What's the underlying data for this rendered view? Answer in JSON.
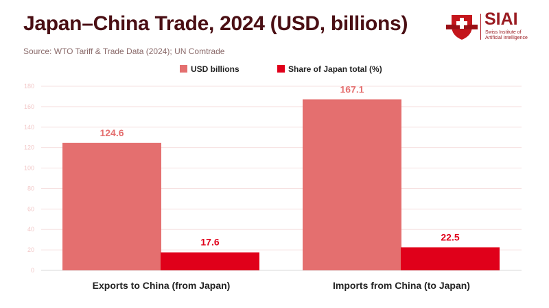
{
  "header": {
    "title": "Japan–China Trade, 2024 (USD, billions)",
    "source": "Source: WTO Tariff & Trade Data (2024); UN Comtrade"
  },
  "logo": {
    "name": "SIAI",
    "subtitle_line1": "Swiss Institute of",
    "subtitle_line2": "Artificial Intelligence"
  },
  "chart_data": {
    "type": "bar",
    "title": "Japan–China Trade, 2024 (USD, billions)",
    "categories": [
      "Exports to China (from Japan)",
      "Imports from China (to Japan)"
    ],
    "series": [
      {
        "name": "USD billions",
        "values": [
          124.6,
          167.1
        ],
        "color": "#e46f6f",
        "label_color": "#e46f6f"
      },
      {
        "name": "Share of Japan total (%)",
        "values": [
          17.6,
          22.5
        ],
        "color": "#e0001a",
        "label_color": "#e0001a"
      }
    ],
    "ylim": [
      0,
      180
    ],
    "yticks": [
      0,
      20,
      40,
      60,
      80,
      100,
      120,
      140,
      160,
      180
    ],
    "legend": "top-center",
    "grid": true
  }
}
